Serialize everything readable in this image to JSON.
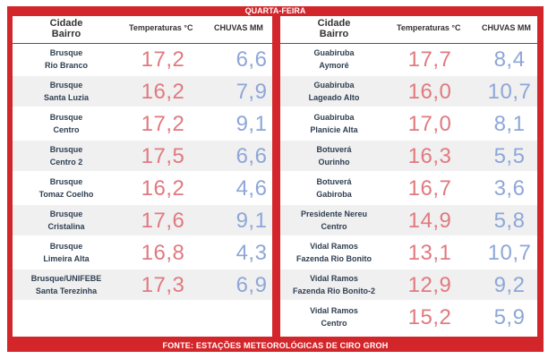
{
  "title": "QUARTA-FEIRA",
  "headers": {
    "city_line1": "Cidade",
    "city_line2": "Bairro",
    "temperature": "Temperaturas °C",
    "rain": "CHUVAS MM"
  },
  "left_rows": [
    {
      "city": "Brusque",
      "district": "Rio Branco",
      "temp": "17,2",
      "rain": "6,6"
    },
    {
      "city": "Brusque",
      "district": "Santa Luzia",
      "temp": "16,2",
      "rain": "7,9"
    },
    {
      "city": "Brusque",
      "district": "Centro",
      "temp": "17,2",
      "rain": "9,1"
    },
    {
      "city": "Brusque",
      "district": "Centro 2",
      "temp": "17,5",
      "rain": "6,6"
    },
    {
      "city": "Brusque",
      "district": "Tomaz Coelho",
      "temp": "16,2",
      "rain": "4,6"
    },
    {
      "city": "Brusque",
      "district": "Cristalina",
      "temp": "17,6",
      "rain": "9,1"
    },
    {
      "city": "Brusque",
      "district": "Limeira Alta",
      "temp": "16,8",
      "rain": "4,3"
    },
    {
      "city": "Brusque/UNIFEBE",
      "district": "Santa Terezinha",
      "temp": "17,3",
      "rain": "6,9"
    }
  ],
  "right_rows": [
    {
      "city": "Guabiruba",
      "district": "Aymoré",
      "temp": "17,7",
      "rain": "8,4"
    },
    {
      "city": "Guabiruba",
      "district": "Lageado Alto",
      "temp": "16,0",
      "rain": "10,7"
    },
    {
      "city": "Guabiruba",
      "district": "Planície Alta",
      "temp": "17,0",
      "rain": "8,1"
    },
    {
      "city": "Botuverá",
      "district": "Ourinho",
      "temp": "16,3",
      "rain": "5,5"
    },
    {
      "city": "Botuverá",
      "district": "Gabiroba",
      "temp": "16,7",
      "rain": "3,6"
    },
    {
      "city": "Presidente Nereu",
      "district": "Centro",
      "temp": "14,9",
      "rain": "5,8"
    },
    {
      "city": "Vidal Ramos",
      "district": "Fazenda Rio Bonito",
      "temp": "13,1",
      "rain": "10,7"
    },
    {
      "city": "Vidal Ramos",
      "district": "Fazenda Rio Bonito-2",
      "temp": "12,9",
      "rain": "9,2"
    },
    {
      "city": "Vidal Ramos",
      "district": "Centro",
      "temp": "15,2",
      "rain": "5,9"
    }
  ],
  "footer": "FONTE: ESTAÇÕES METEOROLÓGICAS DE CIRO GROH",
  "colors": {
    "frame": "#d3262b",
    "temperature": "#e07a80",
    "rain": "#8ea6d8",
    "shade": "#f0f0f0"
  }
}
